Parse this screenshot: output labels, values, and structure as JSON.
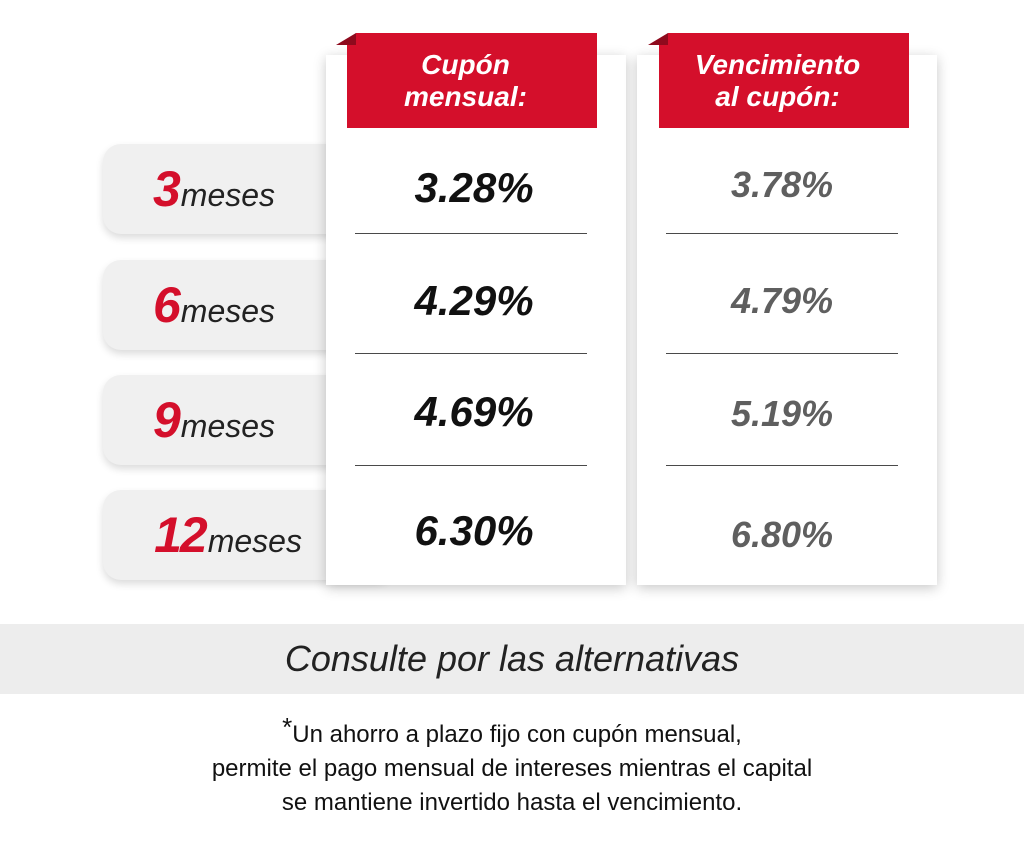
{
  "colors": {
    "accent_red": "#d40f2b",
    "row_pill": "#f0f0f0",
    "band": "#ededed"
  },
  "columns": {
    "cupon_header_line1": "Cupón",
    "cupon_header_line2": "mensual:",
    "vencimiento_header_line1": "Vencimiento",
    "vencimiento_header_line2": "al cupón:"
  },
  "rows": [
    {
      "term": "3",
      "unit": "meses",
      "cupon": "3.28%",
      "vencimiento": "3.78%"
    },
    {
      "term": "6",
      "unit": "meses",
      "cupon": "4.29%",
      "vencimiento": "4.79%"
    },
    {
      "term": "9",
      "unit": "meses",
      "cupon": "4.69%",
      "vencimiento": "5.19%"
    },
    {
      "term": "12",
      "unit": "meses",
      "cupon": "6.30%",
      "vencimiento": "6.80%"
    }
  ],
  "consult_text": "Consulte por las alternativas",
  "footnote": {
    "star": "*",
    "line1": "Un ahorro a plazo fijo con cupón mensual,",
    "line2": "permite el pago mensual de intereses mientras el capital",
    "line3": "se mantiene invertido hasta el vencimiento."
  }
}
